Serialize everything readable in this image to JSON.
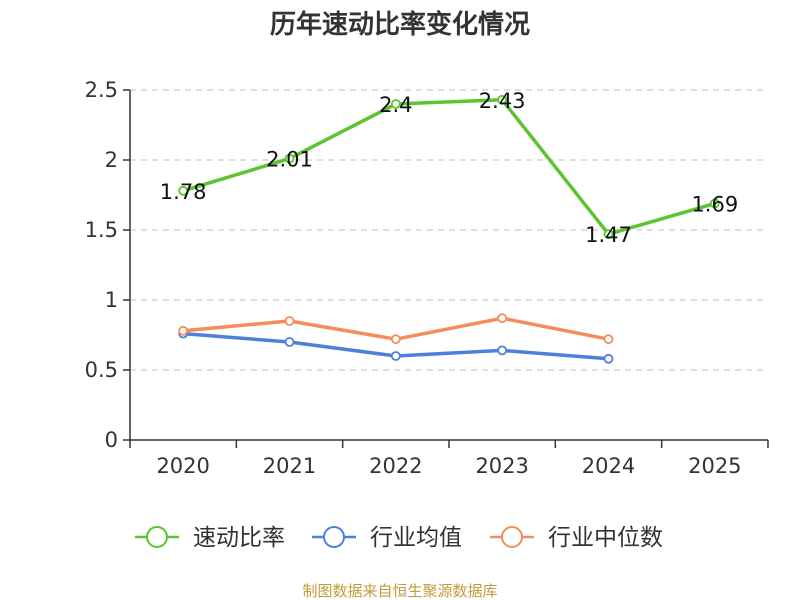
{
  "colors": {
    "series_green": "#5cc431",
    "series_blue": "#4f7fdc",
    "series_orange": "#f58d5a",
    "source_text": "#c49a3c",
    "grid": "#cccccc",
    "axis": "#333333"
  },
  "chart_data": {
    "type": "line",
    "title": "历年速动比率变化情况",
    "categories": [
      "2020",
      "2021",
      "2022",
      "2023",
      "2024",
      "2025"
    ],
    "ylim": [
      0,
      2.5
    ],
    "yticks": [
      "0",
      "0.5",
      "1",
      "1.5",
      "2",
      "2.5"
    ],
    "grid": true,
    "legend_position": "bottom",
    "series": [
      {
        "name": "速动比率",
        "values": [
          1.78,
          2.01,
          2.4,
          2.43,
          1.47,
          1.69
        ],
        "labels": [
          "1.78",
          "2.01",
          "2.4",
          "2.43",
          "1.47",
          "1.69"
        ],
        "color_key": "series_green"
      },
      {
        "name": "行业均值",
        "values": [
          0.76,
          0.7,
          0.6,
          0.64,
          0.58,
          null
        ],
        "color_key": "series_blue"
      },
      {
        "name": "行业中位数",
        "values": [
          0.78,
          0.85,
          0.72,
          0.87,
          0.72,
          null
        ],
        "color_key": "series_orange"
      }
    ],
    "source": "制图数据来自恒生聚源数据库"
  }
}
